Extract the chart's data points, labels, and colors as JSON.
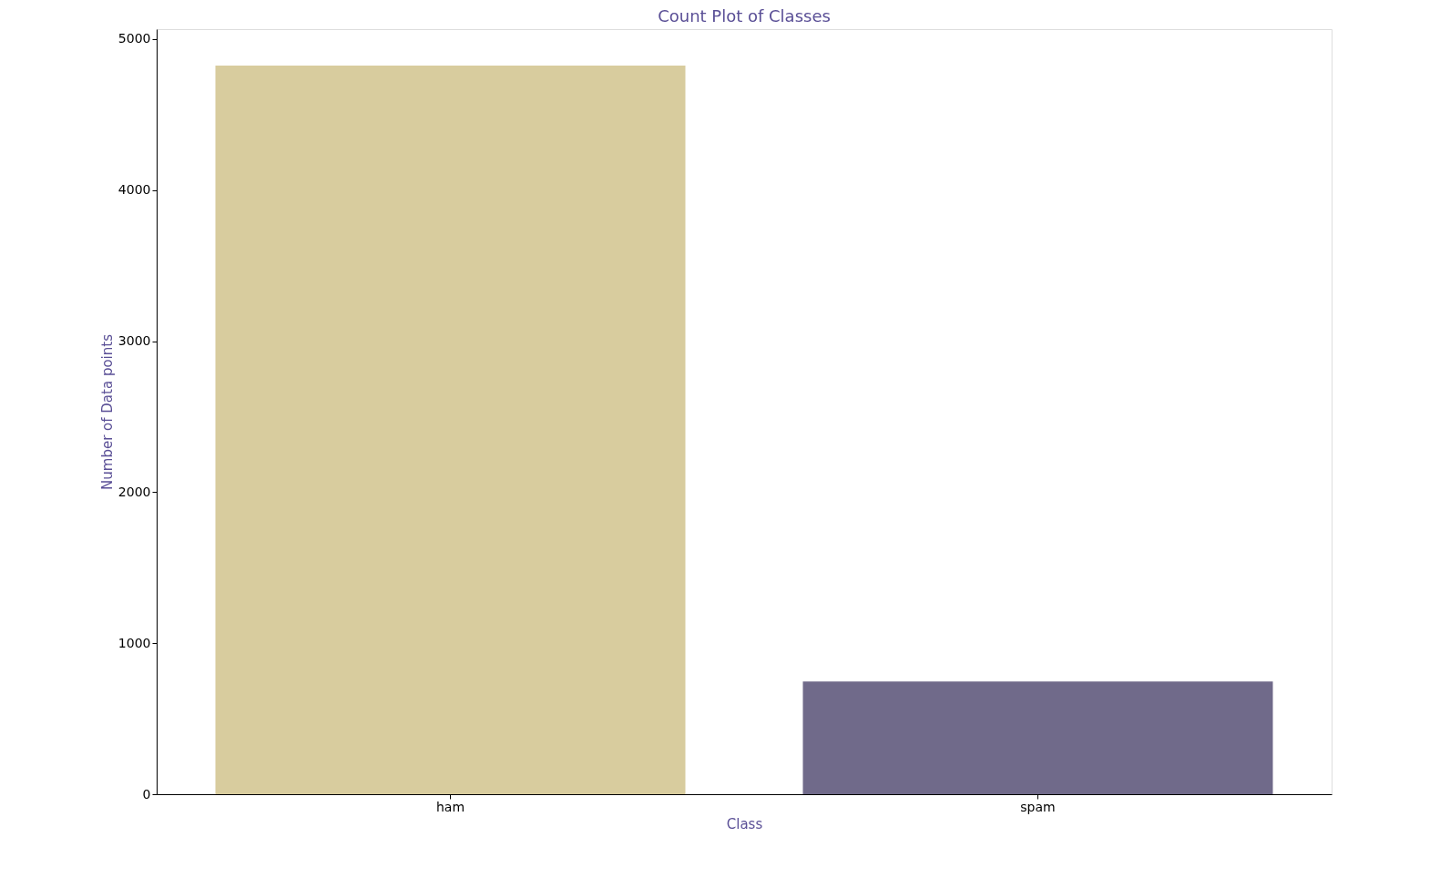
{
  "chart_data": {
    "type": "bar",
    "title": "Count Plot of Classes",
    "xlabel": "Class",
    "ylabel": "Number of Data points",
    "categories": [
      "ham",
      "spam"
    ],
    "values": [
      4825,
      747
    ],
    "colors": [
      "#d8cc9e",
      "#706a8a"
    ],
    "ylim": [
      0,
      5066
    ],
    "yticks": [
      0,
      1000,
      2000,
      3000,
      4000,
      5000
    ],
    "grid": false,
    "legend": false
  }
}
